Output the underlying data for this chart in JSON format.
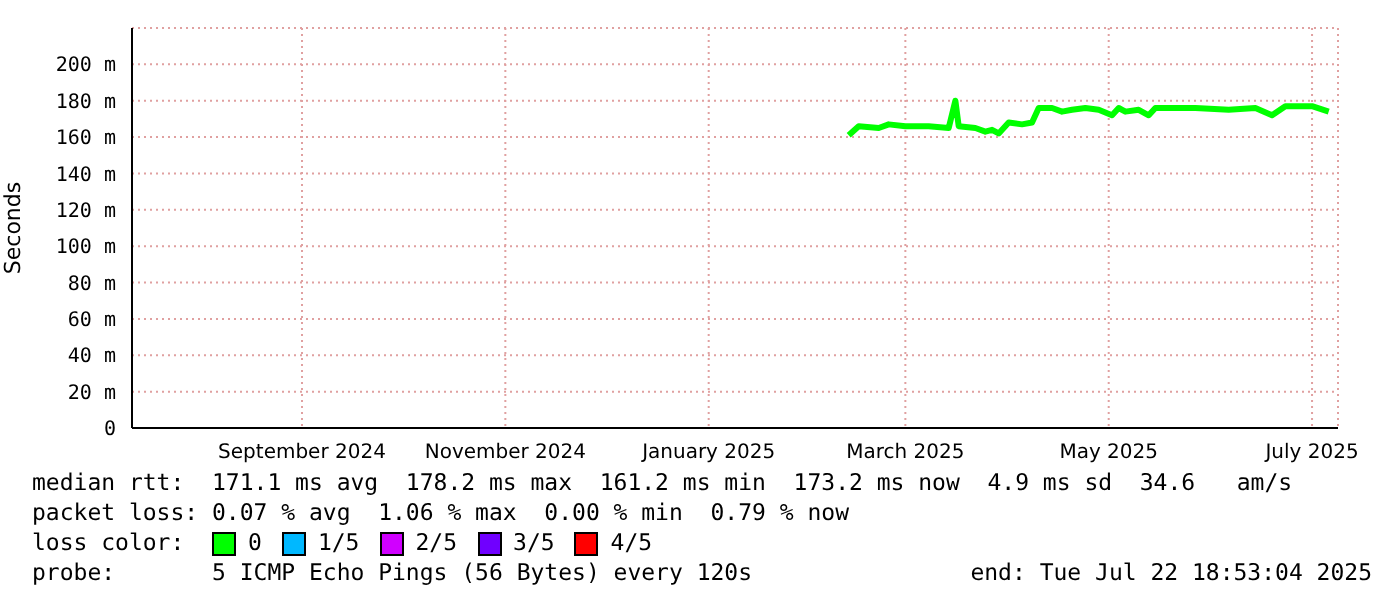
{
  "chart_data": {
    "type": "line",
    "ylabel": "Seconds",
    "xlim": [
      "2024-07-26",
      "2025-07-22T18:53"
    ],
    "xticks": [
      {
        "value": "2024-09-15",
        "label": "September 2024"
      },
      {
        "value": "2024-11-15",
        "label": "November 2024"
      },
      {
        "value": "2025-01-15",
        "label": "January 2025"
      },
      {
        "value": "2025-03-15",
        "label": "March 2025"
      },
      {
        "value": "2025-05-15",
        "label": "May 2025"
      },
      {
        "value": "2025-07-15",
        "label": "July 2025"
      }
    ],
    "ylim": [
      0,
      220
    ],
    "yticks": [
      0,
      {
        "value": 20,
        "label": "20 m"
      },
      {
        "value": 40,
        "label": "40 m"
      },
      {
        "value": 60,
        "label": "60 m"
      },
      {
        "value": 80,
        "label": "80 m"
      },
      {
        "value": 100,
        "label": "100 m"
      },
      {
        "value": 120,
        "label": "120 m"
      },
      {
        "value": 140,
        "label": "140 m"
      },
      {
        "value": 160,
        "label": "160 m"
      },
      {
        "value": 180,
        "label": "180 m"
      },
      {
        "value": 200,
        "label": "200 m"
      }
    ],
    "grid": true,
    "legend": "bottom",
    "legend_title": "loss color:",
    "marker": "none",
    "x": [
      "2025-02-26",
      "2025-03-01",
      "2025-03-07",
      "2025-03-10",
      "2025-03-15",
      "2025-03-22",
      "2025-03-28",
      "2025-03-30",
      "2025-03-31",
      "2025-04-05",
      "2025-04-08",
      "2025-04-10",
      "2025-04-12",
      "2025-04-15",
      "2025-04-19",
      "2025-04-22",
      "2025-04-24",
      "2025-04-28",
      "2025-05-01",
      "2025-05-04",
      "2025-05-08",
      "2025-05-12",
      "2025-05-16",
      "2025-05-18",
      "2025-05-20",
      "2025-05-24",
      "2025-05-27",
      "2025-05-29",
      "2025-06-10",
      "2025-06-20",
      "2025-06-28",
      "2025-07-03",
      "2025-07-07",
      "2025-07-15",
      "2025-07-20"
    ],
    "series": [
      {
        "name": "0",
        "color": "#00ff00",
        "values": [
          161,
          166,
          165,
          167,
          166,
          166,
          165,
          180,
          166,
          165,
          163,
          164,
          162,
          168,
          167,
          168,
          176,
          176,
          174,
          175,
          176,
          175,
          172,
          176,
          174,
          175,
          172,
          176,
          176,
          175,
          176,
          172,
          177,
          177,
          174
        ]
      },
      {
        "name": "1/5",
        "color": "#00b8ff",
        "values": [
          null,
          null,
          null,
          null,
          null,
          null,
          null,
          null,
          null,
          null,
          null,
          null,
          null,
          null,
          null,
          null,
          null,
          null,
          null,
          null,
          null,
          null,
          null,
          null,
          null,
          null,
          null,
          null,
          null,
          null,
          null,
          null,
          null,
          null,
          null
        ]
      },
      {
        "name": "2/5",
        "color": "#d000ff",
        "values": [
          null,
          null,
          null,
          null,
          null,
          null,
          null,
          null,
          null,
          null,
          null,
          null,
          null,
          null,
          null,
          null,
          null,
          null,
          null,
          null,
          null,
          null,
          null,
          null,
          null,
          null,
          null,
          null,
          null,
          null,
          null,
          null,
          null,
          null,
          null
        ]
      },
      {
        "name": "3/5",
        "color": "#7000ff",
        "values": [
          null,
          null,
          null,
          null,
          null,
          null,
          null,
          null,
          null,
          null,
          null,
          null,
          null,
          null,
          null,
          null,
          null,
          null,
          null,
          null,
          null,
          null,
          null,
          null,
          null,
          null,
          null,
          null,
          null,
          null,
          null,
          null,
          null,
          null,
          null
        ]
      },
      {
        "name": "4/5",
        "color": "#ff0000",
        "values": [
          null,
          null,
          null,
          null,
          null,
          null,
          null,
          null,
          null,
          null,
          null,
          null,
          null,
          null,
          null,
          null,
          null,
          null,
          null,
          null,
          null,
          null,
          null,
          null,
          null,
          null,
          null,
          null,
          null,
          null,
          null,
          null,
          null,
          null,
          null
        ]
      }
    ],
    "annotations": [
      "median rtt:  171.1 ms avg  178.2 ms max  161.2 ms min  173.2 ms now  4.9 ms sd  34.6   am/s",
      "packet loss: 0.07 % avg  1.06 % max  0.00 % min  0.79 % now",
      "probe:       5 ICMP Echo Pings (56 Bytes) every 120s",
      "end: Tue Jul 22 18:53:04 2025"
    ]
  }
}
